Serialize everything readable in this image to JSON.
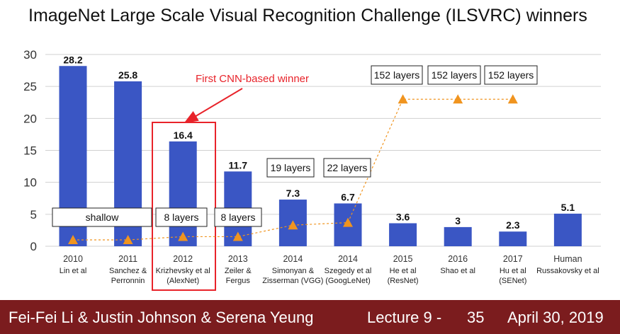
{
  "title": "ImageNet Large Scale Visual Recognition Challenge (ILSVRC) winners",
  "chart_data": {
    "type": "bar",
    "title": "ImageNet Large Scale Visual Recognition Challenge (ILSVRC) winners",
    "ylim": [
      0,
      30
    ],
    "yticks": [
      0,
      5,
      10,
      15,
      20,
      25,
      30
    ],
    "grid": true,
    "bar_color": "#3a56c4",
    "categories": [
      "2010",
      "2011",
      "2012",
      "2013",
      "2014",
      "2014",
      "2015",
      "2016",
      "2017",
      "Human"
    ],
    "sublabels": [
      [
        "Lin et al"
      ],
      [
        "Sanchez &",
        "Perronnin"
      ],
      [
        "Krizhevsky et al",
        "(AlexNet)"
      ],
      [
        "Zeiler &",
        "Fergus"
      ],
      [
        "Simonyan &",
        "Zisserman (VGG)"
      ],
      [
        "Szegedy et al",
        "(GoogLeNet)"
      ],
      [
        "He et al",
        "(ResNet)"
      ],
      [
        "Shao et al"
      ],
      [
        "Hu et al",
        "(SENet)"
      ],
      [
        "Russakovsky et al"
      ]
    ],
    "values": [
      28.2,
      25.8,
      16.4,
      11.7,
      7.3,
      6.7,
      3.6,
      3,
      2.3,
      5.1
    ],
    "value_labels": [
      "28.2",
      "25.8",
      "16.4",
      "11.7",
      "7.3",
      "6.7",
      "3.6",
      "3",
      "2.3",
      "5.1"
    ],
    "depth_series": {
      "name": "layers",
      "color": "#f0941f",
      "values": [
        1.0,
        1.0,
        1.5,
        1.5,
        3.3,
        3.7,
        23.0,
        23.0,
        23.0,
        null
      ]
    },
    "annotations": {
      "highlight": "First CNN-based winner",
      "highlight_color": "#e8232a",
      "layer_boxes": [
        "shallow",
        "8 layers",
        "8 layers",
        "19 layers",
        "22 layers",
        "152 layers",
        "152 layers",
        "152 layers"
      ]
    }
  },
  "footer": {
    "authors": "Fei-Fei Li & Justin Johnson & Serena Yeung",
    "lecture": "Lecture 9 -",
    "page": "35",
    "date": "April 30, 2019"
  }
}
